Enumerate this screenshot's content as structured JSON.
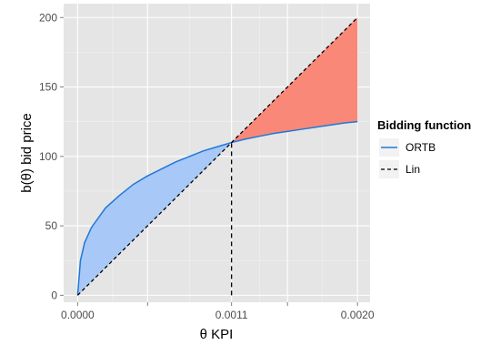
{
  "chart_data": {
    "type": "line",
    "xlabel": "θ KPI",
    "ylabel": "b(θ) bid price",
    "xlim": [
      -0.0001,
      0.00209
    ],
    "ylim": [
      -5,
      210
    ],
    "x_ticks": [
      {
        "value": 0.0,
        "label": "0.0000"
      },
      {
        "value": 0.0005,
        "label": ""
      },
      {
        "value": 0.0011,
        "label": "0.0011"
      },
      {
        "value": 0.0015,
        "label": ""
      },
      {
        "value": 0.002,
        "label": "0.0020"
      }
    ],
    "y_ticks": [
      0,
      50,
      100,
      150,
      200
    ],
    "grid": true,
    "panel_background": "#e5e5e5",
    "legend": {
      "title": "Bidding function",
      "position": "right",
      "entries": [
        "ORTB",
        "Lin"
      ]
    },
    "series": [
      {
        "name": "ORTB",
        "color": "#1f78d6",
        "style": "solid",
        "x": [
          0,
          2e-05,
          5e-05,
          0.0001,
          0.0002,
          0.0003,
          0.0004,
          0.0005,
          0.0006,
          0.0007,
          0.0008,
          0.0009,
          0.001,
          0.0011,
          0.0012,
          0.0013,
          0.0014,
          0.0015,
          0.0016,
          0.0017,
          0.0018,
          0.0019,
          0.002
        ],
        "y": [
          0,
          25,
          38,
          49,
          63,
          72,
          80,
          86,
          91,
          96,
          100,
          104,
          107,
          110,
          112.5,
          114.5,
          116.5,
          118,
          119.5,
          121,
          122.5,
          124,
          125
        ]
      },
      {
        "name": "Lin",
        "color": "#000000",
        "style": "dashed",
        "x": [
          0,
          0.002
        ],
        "y": [
          0,
          200
        ]
      }
    ],
    "annotations": [
      {
        "type": "vline",
        "x": 0.0011,
        "y_from": 0,
        "y_to": 110,
        "style": "dashed",
        "color": "#000000"
      },
      {
        "type": "shaded_region",
        "between": [
          "ORTB",
          "Lin"
        ],
        "x_from": 0,
        "x_to": 0.0011,
        "color": "#a8c8f8"
      },
      {
        "type": "shaded_region",
        "between": [
          "Lin",
          "ORTB"
        ],
        "x_from": 0.0011,
        "x_to": 0.002,
        "color": "#fa8878"
      }
    ]
  }
}
